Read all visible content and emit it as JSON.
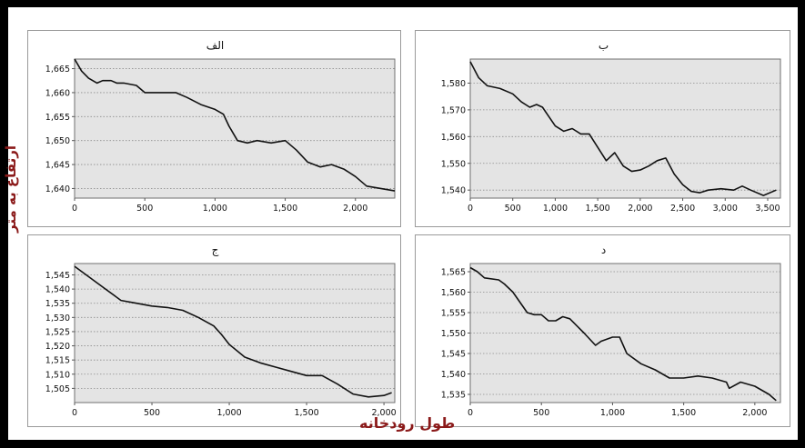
{
  "labels": {
    "y_axis": "ارتفاع به متر",
    "x_axis": "طول رودخانه"
  },
  "colors": {
    "plot_bg": "#e4e4e4",
    "line": "#111111",
    "grid": "#8c8c8c",
    "label": "#8b1a1a"
  },
  "chart_data": [
    {
      "type": "line",
      "title": "الف",
      "xlim": [
        0,
        2280
      ],
      "ylim": [
        1638,
        1667
      ],
      "xticks": [
        0,
        500,
        1000,
        1500,
        2000
      ],
      "xtick_labels": [
        "0",
        "500",
        "1,000",
        "1,500",
        "2,000"
      ],
      "yticks": [
        1640,
        1645,
        1650,
        1655,
        1660,
        1665
      ],
      "ytick_labels": [
        "1,640",
        "1,645",
        "1,650",
        "1,655",
        "1,660",
        "1,665"
      ],
      "grid": "horizontal-dotted",
      "x": [
        0,
        50,
        100,
        160,
        200,
        260,
        300,
        350,
        440,
        500,
        560,
        720,
        800,
        900,
        1000,
        1060,
        1100,
        1160,
        1230,
        1300,
        1400,
        1500,
        1580,
        1660,
        1750,
        1830,
        1920,
        2000,
        2080,
        2280
      ],
      "y": [
        1667,
        1664.5,
        1663,
        1662,
        1662.5,
        1662.5,
        1662,
        1662,
        1661.5,
        1660,
        1660,
        1660,
        1659,
        1657.5,
        1656.5,
        1655.5,
        1653,
        1650,
        1649.5,
        1650,
        1649.5,
        1650,
        1648,
        1645.5,
        1644.5,
        1645,
        1644,
        1642.5,
        1640.5,
        1639.5
      ]
    },
    {
      "type": "line",
      "title": "ب",
      "xlim": [
        0,
        3650
      ],
      "ylim": [
        1537,
        1589
      ],
      "xticks": [
        0,
        500,
        1000,
        1500,
        2000,
        2500,
        3000,
        3500
      ],
      "xtick_labels": [
        "0",
        "500",
        "1,000",
        "1,500",
        "2,000",
        "2,500",
        "3,000",
        "3,500"
      ],
      "yticks": [
        1540,
        1550,
        1560,
        1570,
        1580
      ],
      "ytick_labels": [
        "1,540",
        "1,550",
        "1,560",
        "1,570",
        "1,580"
      ],
      "grid": "horizontal-dotted",
      "x": [
        0,
        100,
        200,
        350,
        500,
        600,
        700,
        780,
        850,
        1000,
        1100,
        1200,
        1300,
        1400,
        1500,
        1600,
        1700,
        1800,
        1900,
        2000,
        2100,
        2200,
        2300,
        2400,
        2500,
        2600,
        2700,
        2800,
        2950,
        3100,
        3200,
        3300,
        3450,
        3600
      ],
      "y": [
        1588,
        1582,
        1579,
        1578,
        1576,
        1573,
        1571,
        1572,
        1571,
        1564,
        1562,
        1563,
        1561,
        1561,
        1556,
        1551,
        1554,
        1549,
        1547,
        1547.5,
        1549,
        1551,
        1552,
        1546,
        1542,
        1539.5,
        1539,
        1540,
        1540.5,
        1540,
        1541.5,
        1540,
        1538,
        1540
      ]
    },
    {
      "type": "line",
      "title": "ج",
      "xlim": [
        0,
        2070
      ],
      "ylim": [
        1500,
        1549
      ],
      "xticks": [
        0,
        500,
        1000,
        1500,
        2000
      ],
      "xtick_labels": [
        "0",
        "500",
        "1,000",
        "1,500",
        "2,000"
      ],
      "yticks": [
        1505,
        1510,
        1515,
        1520,
        1525,
        1530,
        1535,
        1540,
        1545
      ],
      "ytick_labels": [
        "1,505",
        "1,510",
        "1,515",
        "1,520",
        "1,525",
        "1,530",
        "1,535",
        "1,540",
        "1,545"
      ],
      "grid": "horizontal-dotted",
      "x": [
        0,
        100,
        200,
        300,
        400,
        500,
        600,
        700,
        800,
        900,
        950,
        1000,
        1100,
        1200,
        1300,
        1400,
        1500,
        1600,
        1700,
        1800,
        1900,
        2000,
        2050
      ],
      "y": [
        1548,
        1544,
        1540,
        1536,
        1535,
        1534,
        1533.5,
        1532.5,
        1530,
        1527,
        1524,
        1520.5,
        1516,
        1514,
        1512.5,
        1511,
        1509.5,
        1509.5,
        1506.5,
        1503,
        1502,
        1502.5,
        1503.5
      ]
    },
    {
      "type": "line",
      "title": "د",
      "xlim": [
        0,
        2180
      ],
      "ylim": [
        1533,
        1567
      ],
      "xticks": [
        0,
        500,
        1000,
        1500,
        2000
      ],
      "xtick_labels": [
        "0",
        "500",
        "1,000",
        "1,500",
        "2,000"
      ],
      "yticks": [
        1535,
        1540,
        1545,
        1550,
        1555,
        1560,
        1565
      ],
      "ytick_labels": [
        "1,535",
        "1,540",
        "1,545",
        "1,550",
        "1,555",
        "1,560",
        "1,565"
      ],
      "grid": "horizontal-dotted",
      "x": [
        0,
        50,
        100,
        200,
        240,
        300,
        400,
        450,
        500,
        550,
        600,
        650,
        700,
        800,
        880,
        920,
        1000,
        1050,
        1100,
        1200,
        1300,
        1400,
        1500,
        1600,
        1700,
        1800,
        1820,
        1900,
        2000,
        2100,
        2150
      ],
      "y": [
        1566,
        1565,
        1563.5,
        1563,
        1562,
        1560,
        1555,
        1554.5,
        1554.5,
        1553,
        1553,
        1554,
        1553.5,
        1550,
        1547,
        1548,
        1549,
        1549,
        1545,
        1542.5,
        1541,
        1539,
        1539,
        1539.5,
        1539,
        1538,
        1536.5,
        1538,
        1537,
        1535,
        1533.5
      ]
    }
  ]
}
